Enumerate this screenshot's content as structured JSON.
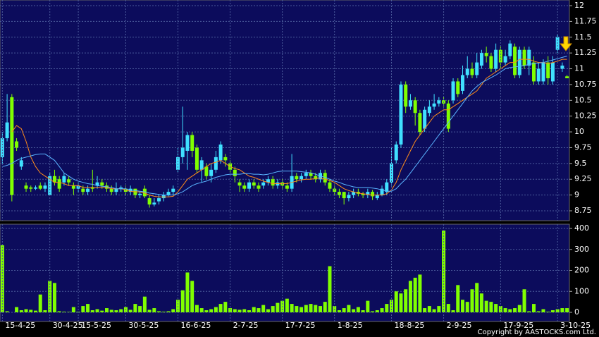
{
  "chart_data": [
    {
      "type": "candlestick",
      "categories": [
        "15-4-25",
        null,
        null,
        null,
        null,
        null,
        null,
        null,
        null,
        null,
        "30-4-25",
        null,
        null,
        null,
        null,
        null,
        "15-5-25",
        null,
        null,
        null,
        null,
        null,
        null,
        null,
        null,
        null,
        "30-5-25",
        null,
        null,
        null,
        null,
        null,
        null,
        null,
        null,
        null,
        null,
        "16-6-25",
        null,
        null,
        null,
        null,
        null,
        null,
        null,
        null,
        null,
        null,
        "2-7-25",
        null,
        null,
        null,
        null,
        null,
        null,
        null,
        null,
        null,
        null,
        "17-7-25",
        null,
        null,
        null,
        null,
        null,
        null,
        null,
        null,
        null,
        null,
        "1-8-25",
        null,
        null,
        null,
        null,
        null,
        null,
        null,
        null,
        null,
        null,
        null,
        "18-8-25",
        null,
        null,
        null,
        null,
        null,
        null,
        null,
        null,
        null,
        null,
        "2-9-25",
        null,
        null,
        null,
        null,
        null,
        null,
        null,
        null,
        null,
        null,
        null,
        "17-9-25",
        null,
        null,
        null,
        null,
        null,
        null,
        null,
        null,
        null,
        null,
        null,
        "3-10-25",
        null,
        null
      ],
      "open": [
        9.6,
        9.9,
        10.55,
        9.85,
        9.45,
        9.15,
        9.12,
        9.1,
        9.15,
        9.1,
        9.0,
        9.3,
        9.25,
        9.2,
        9.25,
        9.15,
        9.1,
        9.1,
        9.05,
        9.12,
        9.15,
        9.2,
        9.15,
        9.1,
        9.05,
        9.1,
        9.1,
        9.05,
        9.1,
        9.0,
        9.1,
        8.95,
        8.85,
        8.9,
        8.95,
        9.0,
        9.05,
        9.4,
        9.6,
        9.7,
        9.95,
        9.75,
        9.4,
        9.45,
        9.3,
        9.4,
        9.55,
        9.6,
        9.5,
        9.4,
        9.2,
        9.15,
        9.1,
        9.2,
        9.15,
        9.15,
        9.2,
        9.25,
        9.15,
        9.2,
        9.15,
        9.1,
        9.3,
        9.25,
        9.3,
        9.35,
        9.3,
        9.25,
        9.35,
        9.2,
        9.1,
        9.05,
        9.05,
        8.95,
        9.0,
        9.05,
        9.02,
        9.0,
        9.05,
        8.95,
        9.0,
        9.05,
        9.2,
        9.55,
        9.8,
        10.75,
        10.4,
        10.5,
        10.3,
        10.05,
        10.3,
        10.4,
        10.45,
        10.5,
        10.45,
        10.5,
        10.8,
        10.65,
        10.9,
        11.0,
        10.9,
        11.05,
        11.25,
        11.2,
        11.0,
        11.3,
        11.1,
        11.2,
        11.35,
        10.9,
        11.3,
        11.05,
        11.1,
        10.8,
        10.8,
        11.1,
        10.8,
        11.3,
        11.0,
        10.88
      ],
      "high": [
        10.0,
        10.6,
        10.6,
        9.9,
        9.6,
        9.2,
        9.15,
        9.15,
        9.2,
        9.2,
        9.35,
        9.4,
        9.3,
        9.35,
        9.3,
        9.2,
        9.2,
        9.15,
        9.15,
        9.4,
        9.3,
        9.25,
        9.2,
        9.15,
        9.2,
        9.15,
        9.15,
        9.15,
        9.1,
        9.05,
        9.15,
        9.0,
        8.95,
        9.0,
        9.05,
        9.1,
        9.15,
        9.75,
        10.4,
        10.0,
        10.0,
        9.8,
        9.6,
        9.5,
        9.5,
        9.7,
        9.85,
        9.65,
        9.55,
        9.45,
        9.25,
        9.2,
        9.25,
        9.25,
        9.2,
        9.25,
        9.3,
        9.3,
        9.25,
        9.25,
        9.2,
        9.65,
        9.35,
        9.35,
        9.4,
        9.4,
        9.35,
        9.4,
        9.4,
        9.25,
        9.15,
        9.1,
        9.05,
        9.05,
        9.1,
        9.1,
        9.05,
        9.1,
        9.08,
        9.05,
        9.15,
        9.25,
        9.75,
        9.85,
        10.8,
        10.8,
        10.6,
        10.55,
        10.35,
        10.4,
        10.5,
        10.6,
        10.55,
        10.55,
        10.5,
        10.85,
        10.85,
        11.05,
        11.2,
        11.1,
        11.25,
        11.3,
        11.35,
        11.25,
        11.4,
        11.35,
        11.3,
        11.45,
        11.4,
        11.35,
        11.35,
        11.35,
        11.2,
        11.1,
        11.15,
        11.2,
        11.2,
        11.55,
        11.1,
        10.9
      ],
      "low": [
        9.5,
        9.85,
        8.9,
        9.7,
        9.4,
        9.05,
        9.05,
        9.08,
        9.08,
        9.05,
        9.0,
        9.15,
        9.05,
        9.15,
        9.15,
        9.0,
        9.05,
        9.0,
        9.0,
        9.05,
        9.1,
        9.1,
        9.05,
        9.0,
        9.0,
        9.05,
        9.0,
        9.0,
        8.95,
        8.95,
        8.95,
        8.8,
        8.82,
        8.85,
        8.9,
        8.98,
        9.0,
        9.35,
        9.5,
        9.4,
        9.6,
        9.35,
        9.2,
        9.25,
        9.2,
        9.35,
        9.5,
        9.45,
        9.35,
        9.2,
        9.05,
        9.05,
        9.05,
        9.1,
        9.05,
        9.1,
        9.15,
        9.1,
        9.1,
        9.1,
        9.05,
        9.05,
        9.2,
        9.2,
        9.25,
        9.25,
        9.2,
        9.2,
        9.15,
        9.05,
        9.0,
        8.95,
        8.85,
        8.9,
        8.95,
        8.98,
        8.95,
        8.95,
        8.92,
        8.92,
        8.98,
        9.0,
        9.15,
        9.5,
        9.75,
        10.3,
        10.35,
        10.1,
        9.95,
        10.0,
        10.25,
        10.35,
        10.4,
        10.4,
        10.0,
        10.45,
        10.55,
        10.6,
        10.85,
        10.85,
        10.85,
        11.0,
        11.1,
        10.95,
        10.95,
        11.0,
        11.05,
        11.15,
        10.85,
        10.85,
        11.0,
        10.9,
        10.75,
        10.75,
        10.75,
        10.75,
        10.75,
        11.25,
        10.95,
        10.85
      ],
      "close": [
        9.9,
        10.15,
        9.0,
        9.75,
        9.55,
        9.1,
        9.1,
        9.12,
        9.1,
        9.15,
        9.3,
        9.2,
        9.1,
        9.3,
        9.2,
        9.1,
        9.15,
        9.05,
        9.1,
        9.1,
        9.2,
        9.15,
        9.1,
        9.05,
        9.1,
        9.12,
        9.05,
        9.1,
        9.0,
        9.02,
        8.98,
        8.85,
        8.88,
        8.95,
        9.0,
        9.05,
        9.1,
        9.6,
        9.75,
        9.95,
        9.7,
        9.4,
        9.55,
        9.3,
        9.4,
        9.6,
        9.8,
        9.55,
        9.4,
        9.3,
        9.15,
        9.1,
        9.2,
        9.15,
        9.1,
        9.2,
        9.25,
        9.15,
        9.2,
        9.15,
        9.1,
        9.3,
        9.25,
        9.3,
        9.35,
        9.3,
        9.25,
        9.35,
        9.2,
        9.1,
        9.05,
        9.0,
        8.95,
        9.0,
        9.05,
        9.02,
        9.0,
        9.05,
        8.98,
        9.0,
        9.1,
        9.2,
        9.5,
        9.8,
        10.75,
        10.4,
        10.5,
        10.3,
        10.0,
        10.35,
        10.4,
        10.45,
        10.5,
        10.45,
        10.05,
        10.8,
        10.6,
        10.9,
        11.0,
        10.9,
        11.1,
        11.25,
        11.2,
        11.0,
        11.3,
        11.1,
        11.2,
        11.4,
        10.9,
        11.3,
        11.05,
        11.3,
        10.8,
        11.0,
        11.1,
        10.85,
        11.1,
        11.5,
        11.05,
        10.85
      ],
      "up_color": "#40e0ff",
      "down_color": "#80ff00",
      "series": [
        {
          "color": "#ff8c1a",
          "values": [
            null,
            null,
            10.0,
            10.1,
            10.05,
            9.85,
            9.6,
            9.45,
            9.35,
            9.3,
            9.25,
            9.2,
            9.2,
            9.18,
            9.15,
            9.15,
            9.15,
            9.12,
            9.12,
            9.12,
            9.12,
            9.12,
            9.12,
            9.1,
            9.1,
            9.1,
            9.08,
            9.06,
            9.05,
            9.05,
            9.03,
            9.0,
            8.98,
            8.97,
            8.97,
            8.97,
            8.98,
            9.05,
            9.15,
            9.25,
            9.3,
            9.35,
            9.4,
            9.45,
            9.5,
            9.52,
            9.55,
            9.5,
            9.45,
            9.42,
            9.4,
            9.35,
            9.3,
            9.28,
            9.25,
            9.22,
            9.2,
            9.18,
            9.18,
            9.18,
            9.18,
            9.2,
            9.22,
            9.24,
            9.25,
            9.25,
            9.26,
            9.27,
            9.25,
            9.23,
            9.2,
            9.15,
            9.1,
            9.07,
            9.05,
            9.03,
            9.02,
            9.01,
            9.0,
            9.0,
            9.0,
            9.02,
            9.08,
            9.2,
            9.4,
            9.55,
            9.7,
            9.85,
            9.95,
            10.05,
            10.15,
            10.25,
            10.3,
            10.35,
            10.35,
            10.4,
            10.45,
            10.5,
            10.55,
            10.6,
            10.65,
            10.75,
            10.85,
            10.9,
            10.95,
            11.0,
            11.05,
            11.1,
            11.1,
            11.15,
            11.15,
            11.15,
            11.12,
            11.1,
            11.1,
            11.08,
            11.1,
            11.12,
            11.15,
            11.15
          ]
        },
        {
          "color": "#5ab4ff",
          "values": [
            9.45,
            9.47,
            9.5,
            9.55,
            9.58,
            9.6,
            9.62,
            9.64,
            9.65,
            9.65,
            9.6,
            9.55,
            9.45,
            9.35,
            9.3,
            9.25,
            9.22,
            9.2,
            9.18,
            9.17,
            9.15,
            9.14,
            9.13,
            9.12,
            9.1,
            9.1,
            9.1,
            9.08,
            9.07,
            9.06,
            9.05,
            9.03,
            9.02,
            9.01,
            9.0,
            9.0,
            9.0,
            9.02,
            9.05,
            9.1,
            9.15,
            9.18,
            9.2,
            9.22,
            9.25,
            9.28,
            9.3,
            9.32,
            9.33,
            9.33,
            9.33,
            9.34,
            9.34,
            9.33,
            9.33,
            9.32,
            9.33,
            9.35,
            9.37,
            9.38,
            9.38,
            9.38,
            9.38,
            9.37,
            9.36,
            9.35,
            9.33,
            9.3,
            9.28,
            9.25,
            9.22,
            9.2,
            9.17,
            9.15,
            9.13,
            9.12,
            9.12,
            9.12,
            9.11,
            9.1,
            9.08,
            9.06,
            9.06,
            9.1,
            9.18,
            9.25,
            9.35,
            9.45,
            9.55,
            9.65,
            9.75,
            9.85,
            9.95,
            10.05,
            10.15,
            10.25,
            10.35,
            10.45,
            10.55,
            10.65,
            10.72,
            10.78,
            10.82,
            10.86,
            10.9,
            10.95,
            11.0,
            11.02,
            11.03,
            11.04,
            11.05,
            11.07,
            11.08,
            11.09,
            11.1,
            11.12,
            11.14,
            11.16,
            11.18,
            11.2
          ]
        }
      ],
      "ylim": [
        8.75,
        12
      ],
      "yticks": [
        8.75,
        9,
        9.25,
        9.5,
        9.75,
        10,
        10.25,
        10.5,
        10.75,
        11,
        11.25,
        11.5,
        11.75,
        12
      ],
      "grid": true
    },
    {
      "type": "bar",
      "color": "#80ff00",
      "values": [
        320,
        5,
        0,
        25,
        10,
        15,
        12,
        8,
        85,
        10,
        150,
        140,
        5,
        3,
        2,
        25,
        3,
        30,
        40,
        10,
        15,
        8,
        20,
        12,
        10,
        15,
        25,
        12,
        40,
        30,
        75,
        12,
        20,
        5,
        3,
        5,
        15,
        60,
        105,
        190,
        150,
        35,
        20,
        10,
        15,
        25,
        40,
        50,
        20,
        15,
        12,
        15,
        10,
        25,
        20,
        35,
        15,
        30,
        45,
        55,
        65,
        40,
        30,
        25,
        35,
        40,
        35,
        30,
        50,
        220,
        30,
        10,
        20,
        35,
        15,
        25,
        10,
        55,
        5,
        10,
        20,
        40,
        60,
        100,
        90,
        110,
        150,
        165,
        180,
        20,
        30,
        15,
        30,
        390,
        40,
        10,
        130,
        60,
        50,
        110,
        140,
        90,
        55,
        50,
        40,
        30,
        20,
        15,
        20,
        35,
        110,
        5,
        40,
        5,
        15,
        3,
        10,
        15,
        20,
        20
      ],
      "ylim": [
        0,
        400
      ],
      "yticks": [
        0,
        100,
        200,
        300,
        400
      ],
      "grid": true
    }
  ],
  "footer": "Copyright by AASTOCKS.com Ltd."
}
